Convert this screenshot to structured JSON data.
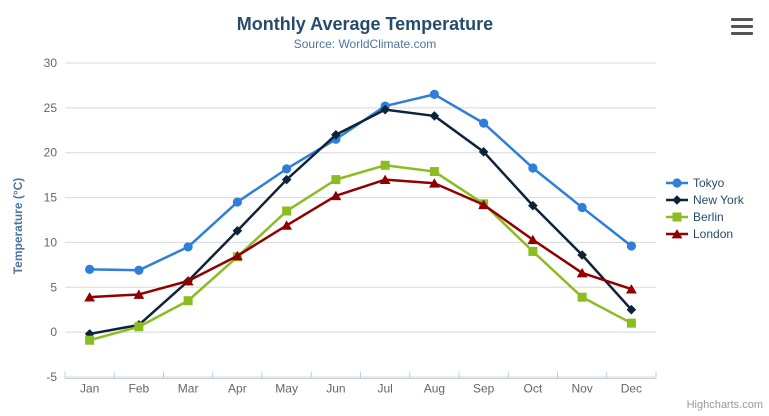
{
  "chart_data": {
    "type": "line",
    "title": "Monthly Average Temperature",
    "subtitle": "Source: WorldClimate.com",
    "xlabel": "",
    "ylabel": "Temperature (°C)",
    "ylim": [
      -5,
      30
    ],
    "ytick_interval": 5,
    "yticks": [
      -5,
      0,
      5,
      10,
      15,
      20,
      25,
      30
    ],
    "grid": "horizontal-only",
    "legend_position": "right",
    "categories": [
      "Jan",
      "Feb",
      "Mar",
      "Apr",
      "May",
      "Jun",
      "Jul",
      "Aug",
      "Sep",
      "Oct",
      "Nov",
      "Dec"
    ],
    "series": [
      {
        "name": "Tokyo",
        "color": "#2f7ed8",
        "marker": "circle",
        "values": [
          7.0,
          6.9,
          9.5,
          14.5,
          18.2,
          21.5,
          25.2,
          26.5,
          23.3,
          18.3,
          13.9,
          9.6
        ]
      },
      {
        "name": "New York",
        "color": "#0d233a",
        "marker": "diamond",
        "values": [
          -0.2,
          0.8,
          5.7,
          11.3,
          17.0,
          22.0,
          24.8,
          24.1,
          20.1,
          14.1,
          8.6,
          2.5
        ]
      },
      {
        "name": "Berlin",
        "color": "#8bbc21",
        "marker": "square",
        "values": [
          -0.9,
          0.6,
          3.5,
          8.4,
          13.5,
          17.0,
          18.6,
          17.9,
          14.3,
          9.0,
          3.9,
          1.0
        ]
      },
      {
        "name": "London",
        "color": "#910000",
        "marker": "triangle",
        "values": [
          3.9,
          4.2,
          5.7,
          8.5,
          11.9,
          15.2,
          17.0,
          16.6,
          14.2,
          10.3,
          6.6,
          4.8
        ]
      }
    ],
    "colors": {
      "title_text": "#274b6d",
      "subtitle_text": "#4d759e",
      "axis_title_text": "#4d759e",
      "tick_label_text": "#666666",
      "gridline": "#d8d8d8",
      "axis_line": "#c0d0e0",
      "credit_text": "#999999"
    },
    "credit": "Highcharts.com",
    "context_menu_icon": "hamburger-icon"
  }
}
